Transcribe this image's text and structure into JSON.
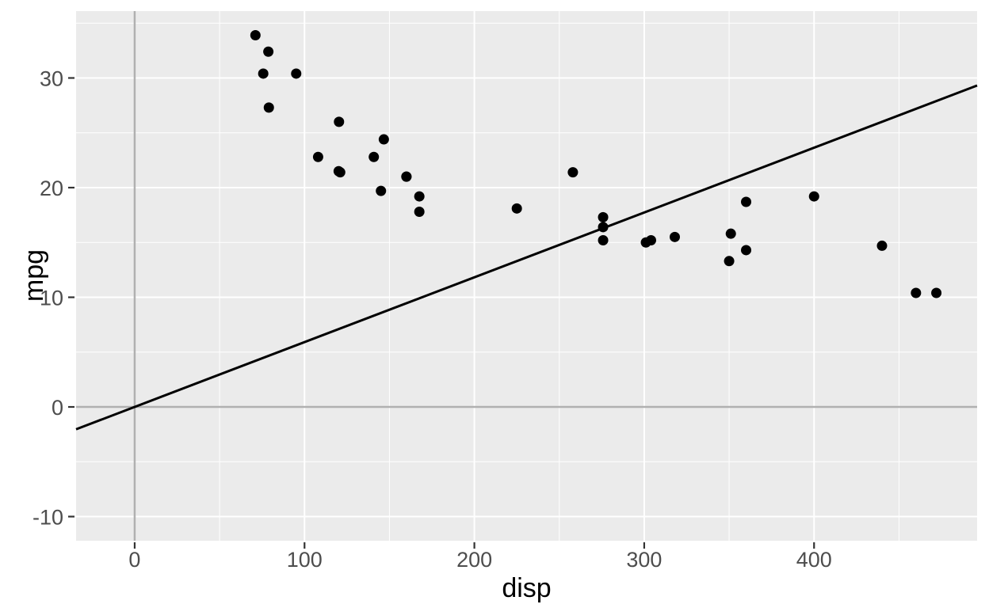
{
  "figure": {
    "kind": "ggplot-scatter",
    "background": "#FFFFFF"
  },
  "chart_data": {
    "type": "scatter",
    "title": "",
    "xlabel": "disp",
    "ylabel": "mpg",
    "xlim": [
      -34.5,
      496
    ],
    "ylim": [
      -12.2,
      36.1
    ],
    "x_ticks": [
      0,
      100,
      200,
      300,
      400
    ],
    "y_ticks": [
      -10,
      0,
      10,
      20,
      30
    ],
    "x_minor_ticks": [
      50,
      150,
      250,
      350,
      450
    ],
    "y_minor_ticks": [
      -5,
      5,
      15,
      25,
      35
    ],
    "grid": true,
    "legend_position": "none",
    "points_disp_mpg": [
      [
        160.0,
        21.0
      ],
      [
        160.0,
        21.0
      ],
      [
        108.0,
        22.8
      ],
      [
        258.0,
        21.4
      ],
      [
        360.0,
        18.7
      ],
      [
        225.0,
        18.1
      ],
      [
        360.0,
        14.3
      ],
      [
        146.7,
        24.4
      ],
      [
        140.8,
        22.8
      ],
      [
        167.6,
        19.2
      ],
      [
        167.6,
        17.8
      ],
      [
        275.8,
        16.4
      ],
      [
        275.8,
        17.3
      ],
      [
        275.8,
        15.2
      ],
      [
        472.0,
        10.4
      ],
      [
        460.0,
        10.4
      ],
      [
        440.0,
        14.7
      ],
      [
        78.7,
        32.4
      ],
      [
        75.7,
        30.4
      ],
      [
        71.1,
        33.9
      ],
      [
        120.1,
        21.5
      ],
      [
        318.0,
        15.5
      ],
      [
        304.0,
        15.2
      ],
      [
        350.0,
        13.3
      ],
      [
        400.0,
        19.2
      ],
      [
        79.0,
        27.3
      ],
      [
        120.3,
        26.0
      ],
      [
        95.1,
        30.4
      ],
      [
        351.0,
        15.8
      ],
      [
        145.0,
        19.7
      ],
      [
        301.0,
        15.0
      ],
      [
        121.0,
        21.4
      ]
    ],
    "abline": {
      "intercept": 0,
      "slope": 0.0591
    },
    "vline_x": 0,
    "hline_y": 0
  },
  "style": {
    "panel_bg": "#EBEBEB",
    "grid_color": "#FFFFFF",
    "reference_line_color": "#B0B0B0",
    "abline_color": "#000000",
    "point_color": "#000000",
    "tick_label_color": "#4D4D4D",
    "tick_mark_color": "#333333",
    "axis_title_color": "#000000"
  }
}
